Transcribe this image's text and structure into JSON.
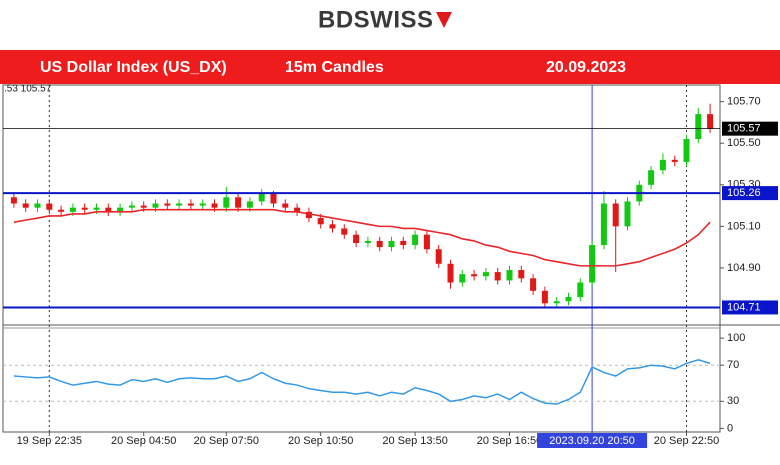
{
  "brand": "BDSWISS",
  "chart_data": {
    "type": "candlestick",
    "title": "US Dollar Index (US_DX)",
    "subtitle": "15m Candles",
    "date": "20.09.2023",
    "corner_label": ".53 105.57",
    "categories": [
      null,
      null,
      null,
      "19 Sep 22:35",
      null,
      null,
      null,
      null,
      null,
      null,
      null,
      "20 Sep 04:50",
      null,
      null,
      null,
      null,
      null,
      null,
      "20 Sep 07:50",
      null,
      null,
      null,
      null,
      null,
      null,
      null,
      "20 Sep 10:50",
      null,
      null,
      null,
      null,
      null,
      null,
      null,
      "20 Sep 13:50",
      null,
      null,
      null,
      null,
      null,
      null,
      null,
      "20 Sep 16:50",
      null,
      null,
      null,
      null,
      null,
      null,
      "2023.09.20 20:50",
      null,
      null,
      null,
      null,
      null,
      null,
      null,
      "20 Sep 22:50",
      null,
      null
    ],
    "open": [
      105.24,
      105.21,
      105.19,
      105.21,
      105.18,
      105.17,
      105.19,
      105.18,
      105.19,
      105.17,
      105.19,
      105.2,
      105.19,
      105.21,
      105.2,
      105.21,
      105.2,
      105.21,
      105.19,
      105.24,
      105.19,
      105.22,
      105.26,
      105.21,
      105.19,
      105.17,
      105.14,
      105.11,
      105.09,
      105.06,
      105.02,
      105.03,
      105.0,
      105.03,
      105.01,
      105.06,
      104.99,
      104.92,
      104.83,
      104.87,
      104.86,
      104.88,
      104.84,
      104.89,
      104.85,
      104.79,
      104.73,
      104.74,
      104.76,
      104.83,
      105.01,
      105.21,
      105.1,
      105.22,
      105.3,
      105.37,
      105.42,
      105.41,
      105.52,
      105.64
    ],
    "high": [
      105.26,
      105.23,
      105.23,
      105.23,
      105.2,
      105.21,
      105.21,
      105.21,
      105.21,
      105.21,
      105.22,
      105.22,
      105.23,
      105.23,
      105.23,
      105.23,
      105.23,
      105.23,
      105.29,
      105.26,
      105.24,
      105.28,
      105.27,
      105.23,
      105.21,
      105.19,
      105.16,
      105.13,
      105.11,
      105.08,
      105.05,
      105.05,
      105.05,
      105.05,
      105.08,
      105.08,
      105.01,
      104.94,
      104.89,
      104.89,
      104.9,
      104.9,
      104.91,
      104.91,
      104.87,
      104.81,
      104.76,
      104.78,
      104.85,
      105.03,
      105.27,
      105.23,
      105.24,
      105.32,
      105.39,
      105.45,
      105.44,
      105.54,
      105.67,
      105.69
    ],
    "low": [
      105.19,
      105.17,
      105.17,
      105.16,
      105.15,
      105.15,
      105.16,
      105.16,
      105.15,
      105.15,
      105.17,
      105.17,
      105.17,
      105.18,
      105.18,
      105.18,
      105.18,
      105.17,
      105.17,
      105.17,
      105.17,
      105.2,
      105.19,
      105.17,
      105.15,
      105.12,
      105.09,
      105.07,
      105.04,
      105.0,
      105.0,
      104.98,
      104.98,
      104.99,
      104.99,
      104.97,
      104.9,
      104.8,
      104.81,
      104.84,
      104.84,
      104.82,
      104.82,
      104.83,
      104.77,
      104.71,
      104.71,
      104.72,
      104.74,
      104.81,
      104.99,
      104.88,
      105.08,
      105.2,
      105.28,
      105.35,
      105.39,
      105.39,
      105.5,
      105.55
    ],
    "close": [
      105.21,
      105.19,
      105.21,
      105.18,
      105.17,
      105.19,
      105.18,
      105.19,
      105.17,
      105.19,
      105.2,
      105.19,
      105.21,
      105.2,
      105.21,
      105.2,
      105.21,
      105.19,
      105.24,
      105.19,
      105.22,
      105.26,
      105.21,
      105.19,
      105.17,
      105.14,
      105.11,
      105.09,
      105.06,
      105.02,
      105.03,
      105.0,
      105.03,
      105.01,
      105.06,
      104.99,
      104.92,
      104.83,
      104.87,
      104.86,
      104.88,
      104.84,
      104.89,
      104.85,
      104.79,
      104.73,
      104.74,
      104.76,
      104.83,
      105.01,
      105.21,
      105.1,
      105.22,
      105.3,
      105.37,
      105.42,
      105.41,
      105.52,
      105.64,
      105.57
    ],
    "up_color": "#12c812",
    "down_color": "#e01818",
    "moving_average": {
      "color": "#e8262a",
      "values": [
        105.12,
        105.13,
        105.14,
        105.15,
        105.15,
        105.16,
        105.16,
        105.17,
        105.17,
        105.17,
        105.17,
        105.18,
        105.18,
        105.18,
        105.18,
        105.18,
        105.18,
        105.18,
        105.18,
        105.18,
        105.18,
        105.18,
        105.18,
        105.17,
        105.17,
        105.16,
        105.15,
        105.14,
        105.13,
        105.12,
        105.11,
        105.1,
        105.1,
        105.09,
        105.09,
        105.08,
        105.07,
        105.06,
        105.04,
        105.03,
        105.01,
        105.0,
        104.98,
        104.97,
        104.96,
        104.94,
        104.93,
        104.92,
        104.91,
        104.91,
        104.91,
        104.91,
        104.92,
        104.93,
        104.95,
        104.97,
        104.99,
        105.02,
        105.06,
        105.12
      ]
    },
    "ylim": [
      104.64,
      105.78
    ],
    "yticks": [
      {
        "value": 104.9,
        "label": "104.90"
      },
      {
        "value": 105.1,
        "label": "105.10"
      },
      {
        "value": 105.3,
        "label": "105.30"
      },
      {
        "value": 105.5,
        "label": "105.50"
      },
      {
        "value": 105.7,
        "label": "105.70"
      }
    ],
    "levels": [
      105.26,
      104.71
    ],
    "level_color": "#0a14c8",
    "last_price": 105.57,
    "last_price_color": "#000000",
    "indicator": {
      "color": "#3399e6",
      "ylim": [
        -4,
        109
      ],
      "yticks": [
        0,
        30,
        70,
        100
      ],
      "values": [
        58,
        57,
        56,
        57,
        52,
        48,
        50,
        52,
        49,
        48,
        54,
        52,
        55,
        51,
        55,
        56,
        55,
        55,
        58,
        52,
        55,
        62,
        55,
        50,
        48,
        44,
        42,
        40,
        40,
        38,
        40,
        36,
        40,
        38,
        45,
        42,
        38,
        30,
        32,
        36,
        34,
        38,
        32,
        40,
        33,
        28,
        27,
        32,
        40,
        68,
        62,
        58,
        66,
        67,
        70,
        69,
        66,
        72,
        76,
        72
      ]
    }
  }
}
